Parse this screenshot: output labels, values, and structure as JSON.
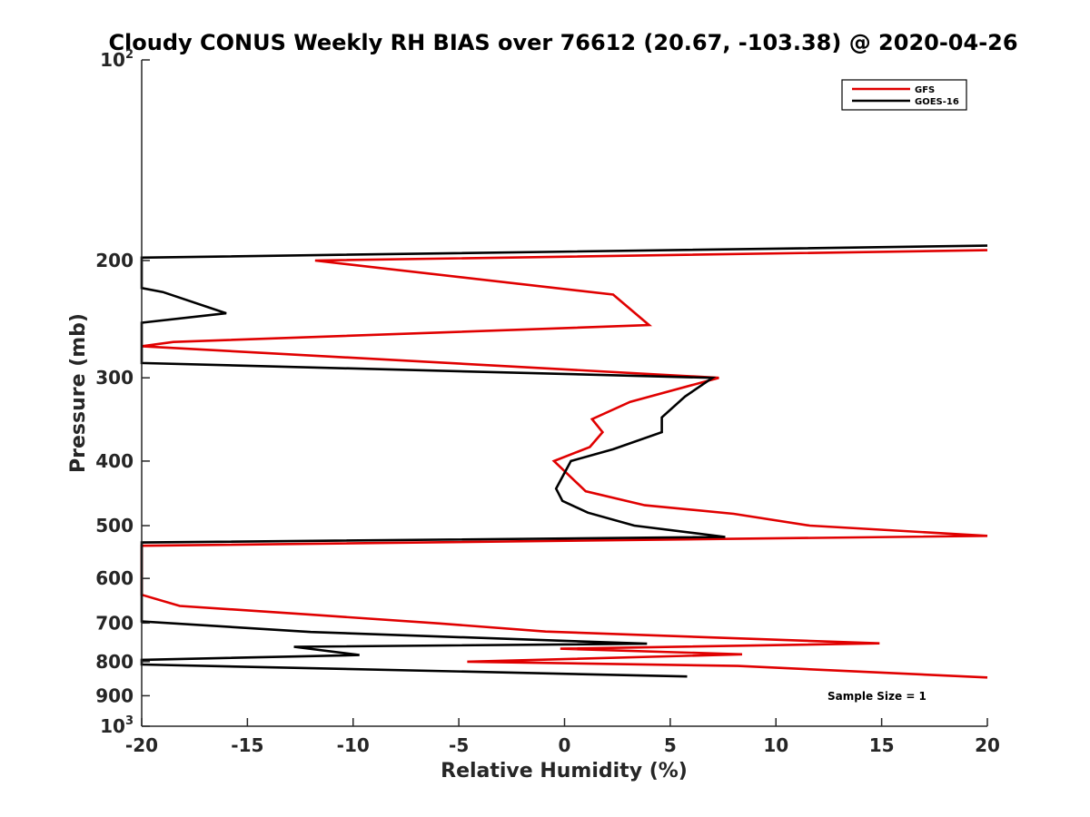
{
  "chart_data": {
    "type": "line",
    "title": "Cloudy CONUS Weekly RH BIAS over 76612 (20.67, -103.38) @ 2020-04-26",
    "xlabel": "Relative Humidity (%)",
    "ylabel": "Pressure (mb)",
    "xlim": [
      -20,
      20
    ],
    "ylim": [
      100,
      1000
    ],
    "yscale": "log",
    "y_reversed": true,
    "grid": false,
    "xticks": [
      {
        "value": -20,
        "label": "-20"
      },
      {
        "value": -15,
        "label": "-15"
      },
      {
        "value": -10,
        "label": "-10"
      },
      {
        "value": -5,
        "label": "-5"
      },
      {
        "value": 0,
        "label": "0"
      },
      {
        "value": 5,
        "label": "5"
      },
      {
        "value": 10,
        "label": "10"
      },
      {
        "value": 15,
        "label": "15"
      },
      {
        "value": 20,
        "label": "20"
      }
    ],
    "yticks": [
      {
        "value": 100,
        "base": "10",
        "exp": "2"
      },
      {
        "value": 200,
        "base": "200",
        "exp": ""
      },
      {
        "value": 300,
        "base": "300",
        "exp": ""
      },
      {
        "value": 400,
        "base": "400",
        "exp": ""
      },
      {
        "value": 500,
        "base": "500",
        "exp": ""
      },
      {
        "value": 600,
        "base": "600",
        "exp": ""
      },
      {
        "value": 700,
        "base": "700",
        "exp": ""
      },
      {
        "value": 800,
        "base": "800",
        "exp": ""
      },
      {
        "value": 900,
        "base": "900",
        "exp": ""
      },
      {
        "value": 1000,
        "base": "10",
        "exp": "3"
      }
    ],
    "legend": {
      "position": "top-right",
      "entries": [
        {
          "name": "GFS",
          "color": "#e00000"
        },
        {
          "name": "GOES-16",
          "color": "#000000"
        }
      ]
    },
    "annotation": "Sample Size = 1",
    "series": [
      {
        "name": "GFS",
        "color": "#e00000",
        "points": [
          [
            20,
            193
          ],
          [
            -11.8,
            200
          ],
          [
            2.3,
            225
          ],
          [
            4.0,
            250
          ],
          [
            -18.5,
            265
          ],
          [
            -20,
            269
          ],
          [
            7.3,
            300
          ],
          [
            3.1,
            326
          ],
          [
            1.3,
            346
          ],
          [
            1.8,
            362
          ],
          [
            1.2,
            381
          ],
          [
            -0.5,
            400
          ],
          [
            1.0,
            444
          ],
          [
            3.8,
            466
          ],
          [
            8.0,
            480
          ],
          [
            11.6,
            500
          ],
          [
            20,
            518
          ],
          [
            -20,
            536
          ],
          [
            -20,
            635
          ],
          [
            -18.2,
            660
          ],
          [
            -12.0,
            680
          ],
          [
            -5.9,
            701
          ],
          [
            -0.9,
            721
          ],
          [
            14.9,
            751
          ],
          [
            -0.2,
            765
          ],
          [
            8.4,
            780
          ],
          [
            -4.6,
            800
          ],
          [
            8.2,
            812
          ],
          [
            20,
            845
          ]
        ]
      },
      {
        "name": "GOES-16",
        "color": "#000000",
        "points": [
          [
            20,
            190
          ],
          [
            -20,
            198
          ],
          [
            -20,
            220
          ],
          [
            -19.0,
            223
          ],
          [
            -16.0,
            240
          ],
          [
            -20,
            248
          ],
          [
            -20,
            285
          ],
          [
            7.0,
            300
          ],
          [
            5.7,
            320
          ],
          [
            4.6,
            344
          ],
          [
            4.6,
            362
          ],
          [
            2.3,
            384
          ],
          [
            0.3,
            400
          ],
          [
            -0.4,
            440
          ],
          [
            -0.1,
            459
          ],
          [
            1.1,
            478
          ],
          [
            3.3,
            500
          ],
          [
            7.6,
            520
          ],
          [
            -20,
            530
          ],
          [
            -20,
            696
          ],
          [
            -12.0,
            722
          ],
          [
            3.9,
            752
          ],
          [
            -12.8,
            760
          ],
          [
            -9.7,
            782
          ],
          [
            -20,
            795
          ],
          [
            -20,
            808
          ],
          [
            5.8,
            842
          ]
        ]
      }
    ]
  }
}
